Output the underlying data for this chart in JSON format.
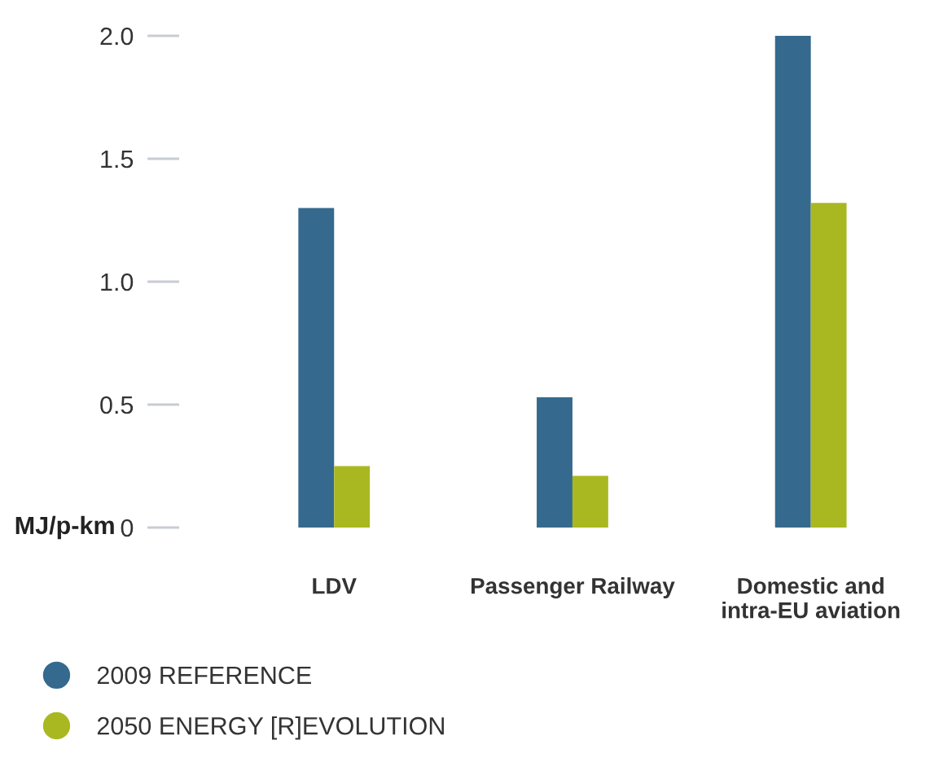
{
  "chart_data": {
    "type": "bar",
    "ylabel": "MJ/p-km",
    "categories": [
      "LDV",
      "Passenger Railway",
      "Domestic and\nintra-EU aviation"
    ],
    "series": [
      {
        "name": "2009 REFERENCE",
        "color": "#356a8e",
        "values": [
          1.3,
          0.53,
          2.0
        ]
      },
      {
        "name": "2050 ENERGY [R]EVOLUTION",
        "color": "#a9b820",
        "values": [
          0.25,
          0.21,
          1.32
        ]
      }
    ],
    "ylim": [
      0,
      2.0
    ],
    "yticks": [
      0,
      0.5,
      {
        "value": 1,
        "label": "1.0"
      },
      1.5,
      {
        "value": 2,
        "label": "2.0"
      }
    ],
    "grid": false,
    "legend": "bottom left"
  }
}
